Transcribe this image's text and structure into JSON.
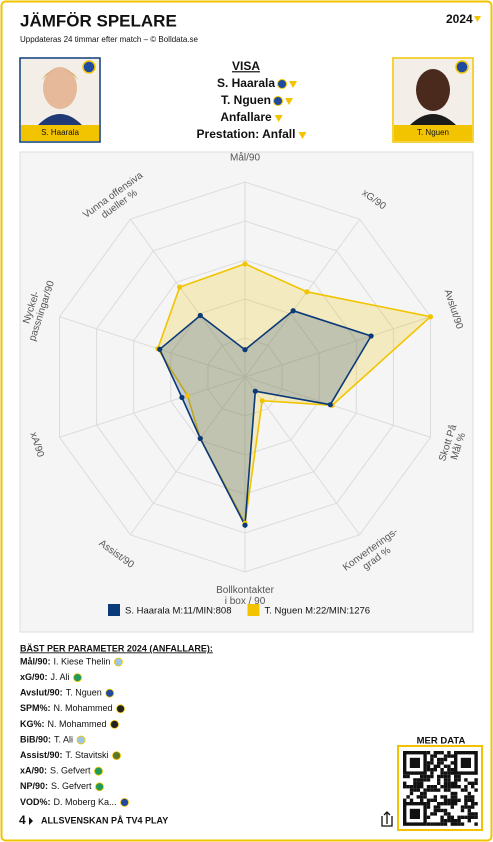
{
  "header": {
    "title": "JÄMFÖR SPELARE",
    "subtitle": "Uppdateras 24 timmar efter match – © Bolldata.se",
    "season": "2024"
  },
  "players": [
    {
      "name": "S. Haarala"
    },
    {
      "name": "T. Nguen"
    }
  ],
  "visa": {
    "heading": "VISA",
    "options": [
      "S. Haarala",
      "T. Nguen",
      "Anfallare",
      "Prestation: Anfall"
    ]
  },
  "chart_data": {
    "type": "radar",
    "axes": [
      [
        "Mål/90"
      ],
      [
        "xG/90"
      ],
      [
        "Avslut/90"
      ],
      [
        "Skott På",
        "Mål %"
      ],
      [
        "Konverterings-",
        "grad %"
      ],
      [
        "Bollkontakter",
        "i box / 90"
      ],
      [
        "Assist/90"
      ],
      [
        "xA/90"
      ],
      [
        "Nyckel-",
        "passningar/90"
      ],
      [
        "Vunna offensiva",
        "dueller %"
      ]
    ],
    "rlim": [
      0,
      100
    ],
    "series": [
      {
        "name": "S. Haarala M:11/MIN:808",
        "color": "#0b3a78",
        "values": [
          14,
          42,
          68,
          46,
          9,
          76,
          39,
          34,
          46,
          39
        ]
      },
      {
        "name": "T. Nguen M:22/MIN:1276",
        "color": "#f2c400",
        "values": [
          58,
          54,
          100,
          47,
          15,
          75,
          39,
          31,
          47,
          57
        ]
      }
    ]
  },
  "best": {
    "title": "BÄST PER PARAMETER 2024 (ANFALLARE):",
    "rows": [
      [
        "Mål/90:",
        "I. Kiese Thelin"
      ],
      [
        "xG/90:",
        "J. Ali"
      ],
      [
        "Avslut/90:",
        "T. Nguen"
      ],
      [
        "SPM%:",
        "N. Mohammed"
      ],
      [
        "KG%:",
        "N. Mohammed"
      ],
      [
        "BiB/90:",
        "T. Ali"
      ],
      [
        "Assist/90:",
        "T. Stavitski"
      ],
      [
        "xA/90:",
        "S. Gefvert"
      ],
      [
        "NP/90:",
        "S. Gefvert"
      ],
      [
        "VOD%:",
        "D. Moberg Ka..."
      ]
    ]
  },
  "more": "MER DATA",
  "footer": "ALLSVENSKAN PÅ TV4 PLAY"
}
